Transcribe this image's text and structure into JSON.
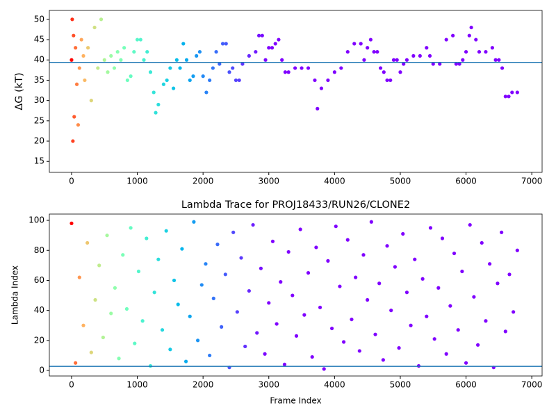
{
  "chart_data": [
    {
      "type": "scatter",
      "ylabel": "ΔG (kT)",
      "x": [
        0,
        10,
        20,
        30,
        40,
        60,
        80,
        100,
        120,
        150,
        180,
        200,
        250,
        300,
        350,
        400,
        450,
        500,
        550,
        600,
        650,
        700,
        750,
        800,
        850,
        900,
        950,
        1000,
        1050,
        1100,
        1150,
        1200,
        1250,
        1280,
        1320,
        1400,
        1450,
        1500,
        1550,
        1600,
        1650,
        1700,
        1750,
        1800,
        1850,
        1900,
        1950,
        2000,
        2050,
        2100,
        2150,
        2200,
        2250,
        2300,
        2350,
        2400,
        2450,
        2500,
        2550,
        2600,
        2700,
        2800,
        2850,
        2900,
        2950,
        3000,
        3050,
        3100,
        3150,
        3200,
        3250,
        3300,
        3400,
        3500,
        3600,
        3700,
        3740,
        3800,
        3900,
        4000,
        4100,
        4200,
        4300,
        4400,
        4450,
        4500,
        4550,
        4600,
        4650,
        4700,
        4750,
        4800,
        4850,
        4900,
        4950,
        5000,
        5050,
        5100,
        5200,
        5300,
        5400,
        5450,
        5500,
        5600,
        5700,
        5800,
        5850,
        5900,
        5950,
        6000,
        6050,
        6080,
        6150,
        6200,
        6300,
        6400,
        6450,
        6500,
        6550,
        6600,
        6650,
        6700,
        6780
      ],
      "values": [
        40,
        50,
        20,
        46,
        26,
        43,
        34,
        24,
        38,
        45,
        41,
        35,
        43,
        30,
        48,
        38,
        50,
        40,
        37,
        41,
        38,
        42,
        40,
        43,
        35,
        36,
        42,
        45,
        45,
        40,
        42,
        37,
        32,
        27,
        29,
        34,
        35,
        38,
        33,
        40,
        38,
        44,
        40,
        35,
        36,
        41,
        42,
        36,
        32,
        35,
        38,
        42,
        39,
        44,
        44,
        37,
        38,
        35,
        35,
        39,
        41,
        42,
        46,
        46,
        40,
        43,
        43,
        44,
        45,
        40,
        37,
        37,
        38,
        38,
        38,
        35,
        28,
        33,
        35,
        37,
        38,
        42,
        44,
        44,
        40,
        43,
        45,
        42,
        42,
        38,
        37,
        35,
        35,
        40,
        40,
        37,
        39,
        40,
        41,
        41,
        43,
        41,
        39,
        39,
        45,
        46,
        39,
        39,
        40,
        42,
        46,
        48,
        45,
        42,
        42,
        43,
        40,
        40,
        38,
        31,
        31,
        32,
        32
      ],
      "xlim": [
        -338,
        7157
      ],
      "ylim": [
        12.3,
        52.2
      ],
      "xticks": [
        0,
        1000,
        2000,
        3000,
        4000,
        5000,
        6000,
        7000
      ],
      "yticks": [
        15,
        20,
        25,
        30,
        35,
        40,
        45,
        50
      ],
      "hline": 39.4,
      "hline_color": "#1f77b4",
      "colormap": "rainbow_r"
    },
    {
      "type": "scatter",
      "title": "Lambda Trace for PROJ18433/RUN26/CLONE2",
      "xlabel": "Frame Index",
      "ylabel": "Lambda Index",
      "x": [
        0,
        60,
        120,
        180,
        240,
        300,
        360,
        420,
        480,
        540,
        600,
        660,
        720,
        780,
        840,
        900,
        960,
        1020,
        1080,
        1140,
        1200,
        1260,
        1320,
        1380,
        1440,
        1500,
        1560,
        1620,
        1680,
        1740,
        1800,
        1860,
        1920,
        1980,
        2040,
        2100,
        2160,
        2220,
        2280,
        2340,
        2400,
        2460,
        2520,
        2580,
        2640,
        2700,
        2760,
        2820,
        2880,
        2940,
        3000,
        3060,
        3120,
        3180,
        3240,
        3300,
        3360,
        3420,
        3480,
        3540,
        3600,
        3660,
        3720,
        3780,
        3840,
        3900,
        3960,
        4020,
        4080,
        4140,
        4200,
        4260,
        4320,
        4380,
        4440,
        4500,
        4560,
        4620,
        4680,
        4740,
        4800,
        4860,
        4920,
        4980,
        5040,
        5100,
        5160,
        5220,
        5280,
        5340,
        5400,
        5460,
        5520,
        5580,
        5640,
        5700,
        5760,
        5820,
        5880,
        5940,
        6000,
        6060,
        6120,
        6180,
        6240,
        6300,
        6360,
        6420,
        6480,
        6540,
        6600,
        6660,
        6720,
        6780
      ],
      "values": [
        98,
        5,
        62,
        30,
        85,
        12,
        47,
        70,
        22,
        90,
        38,
        55,
        8,
        77,
        41,
        95,
        18,
        66,
        33,
        88,
        3,
        52,
        74,
        27,
        93,
        14,
        60,
        44,
        81,
        6,
        36,
        99,
        20,
        57,
        71,
        10,
        48,
        84,
        29,
        64,
        2,
        92,
        39,
        75,
        16,
        53,
        97,
        25,
        68,
        11,
        45,
        86,
        31,
        59,
        4,
        79,
        50,
        23,
        94,
        37,
        65,
        9,
        82,
        42,
        1,
        73,
        28,
        96,
        56,
        19,
        87,
        34,
        62,
        13,
        77,
        47,
        99,
        24,
        58,
        7,
        83,
        40,
        69,
        15,
        91,
        52,
        30,
        74,
        3,
        61,
        36,
        95,
        21,
        55,
        88,
        11,
        43,
        78,
        27,
        66,
        5,
        97,
        49,
        17,
        85,
        33,
        71,
        2,
        58,
        92,
        26,
        64,
        39,
        80
      ],
      "xlim": [
        -338,
        7157
      ],
      "ylim": [
        -3.7,
        104.2
      ],
      "xticks": [
        0,
        1000,
        2000,
        3000,
        4000,
        5000,
        6000,
        7000
      ],
      "yticks": [
        0,
        20,
        40,
        60,
        80,
        100
      ],
      "hline": 2.7,
      "hline_color": "#1f77b4",
      "colormap": "rainbow_r"
    }
  ]
}
